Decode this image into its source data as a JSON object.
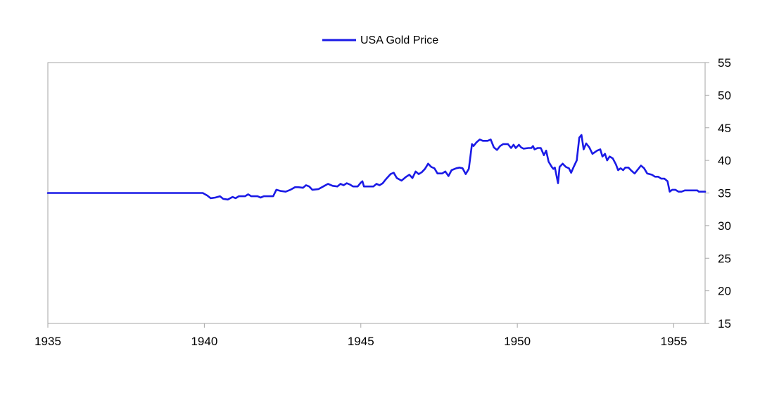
{
  "chart_data": {
    "type": "line",
    "title": "",
    "xlabel": "",
    "ylabel": "",
    "xlim": [
      1935,
      1956
    ],
    "ylim": [
      15,
      55
    ],
    "x_ticks": [
      "1935",
      "1940",
      "1945",
      "1950",
      "1955"
    ],
    "y_ticks": [
      "15",
      "20",
      "25",
      "30",
      "35",
      "40",
      "45",
      "50",
      "55"
    ],
    "y_axis_position": "right",
    "grid": false,
    "legend_position": "top-center",
    "series": [
      {
        "name": "USA Gold Price",
        "color": "#1a1ae6",
        "points": [
          [
            1935.0,
            35.0
          ],
          [
            1939.95,
            35.0
          ],
          [
            1940.1,
            34.6
          ],
          [
            1940.2,
            34.2
          ],
          [
            1940.35,
            34.3
          ],
          [
            1940.5,
            34.5
          ],
          [
            1940.6,
            34.1
          ],
          [
            1940.75,
            34.0
          ],
          [
            1940.9,
            34.4
          ],
          [
            1941.0,
            34.2
          ],
          [
            1941.1,
            34.5
          ],
          [
            1941.3,
            34.5
          ],
          [
            1941.4,
            34.8
          ],
          [
            1941.5,
            34.5
          ],
          [
            1941.7,
            34.5
          ],
          [
            1941.8,
            34.3
          ],
          [
            1941.9,
            34.5
          ],
          [
            1942.1,
            34.5
          ],
          [
            1942.2,
            34.5
          ],
          [
            1942.3,
            35.5
          ],
          [
            1942.45,
            35.3
          ],
          [
            1942.6,
            35.2
          ],
          [
            1942.75,
            35.5
          ],
          [
            1942.9,
            35.9
          ],
          [
            1943.0,
            35.9
          ],
          [
            1943.15,
            35.8
          ],
          [
            1943.25,
            36.2
          ],
          [
            1943.35,
            36.0
          ],
          [
            1943.45,
            35.5
          ],
          [
            1943.65,
            35.6
          ],
          [
            1943.8,
            36.0
          ],
          [
            1943.95,
            36.4
          ],
          [
            1944.1,
            36.1
          ],
          [
            1944.25,
            36.0
          ],
          [
            1944.35,
            36.4
          ],
          [
            1944.45,
            36.2
          ],
          [
            1944.55,
            36.5
          ],
          [
            1944.65,
            36.3
          ],
          [
            1944.75,
            36.0
          ],
          [
            1944.9,
            36.0
          ],
          [
            1945.0,
            36.6
          ],
          [
            1945.05,
            36.8
          ],
          [
            1945.1,
            36.0
          ],
          [
            1945.4,
            36.0
          ],
          [
            1945.5,
            36.4
          ],
          [
            1945.6,
            36.2
          ],
          [
            1945.7,
            36.5
          ],
          [
            1945.8,
            37.1
          ],
          [
            1945.95,
            37.9
          ],
          [
            1946.05,
            38.1
          ],
          [
            1946.15,
            37.3
          ],
          [
            1946.3,
            36.9
          ],
          [
            1946.45,
            37.5
          ],
          [
            1946.55,
            37.8
          ],
          [
            1946.65,
            37.3
          ],
          [
            1946.75,
            38.3
          ],
          [
            1946.85,
            37.9
          ],
          [
            1946.95,
            38.2
          ],
          [
            1947.05,
            38.7
          ],
          [
            1947.15,
            39.5
          ],
          [
            1947.25,
            39.0
          ],
          [
            1947.35,
            38.8
          ],
          [
            1947.45,
            38.0
          ],
          [
            1947.6,
            38.0
          ],
          [
            1947.7,
            38.3
          ],
          [
            1947.8,
            37.6
          ],
          [
            1947.9,
            38.5
          ],
          [
            1948.05,
            38.8
          ],
          [
            1948.15,
            38.9
          ],
          [
            1948.25,
            38.8
          ],
          [
            1948.35,
            37.9
          ],
          [
            1948.45,
            38.7
          ],
          [
            1948.55,
            42.5
          ],
          [
            1948.6,
            42.2
          ],
          [
            1948.7,
            42.8
          ],
          [
            1948.8,
            43.2
          ],
          [
            1948.9,
            43.0
          ],
          [
            1949.05,
            43.0
          ],
          [
            1949.15,
            43.2
          ],
          [
            1949.25,
            42.0
          ],
          [
            1949.35,
            41.6
          ],
          [
            1949.45,
            42.2
          ],
          [
            1949.55,
            42.5
          ],
          [
            1949.7,
            42.5
          ],
          [
            1949.8,
            41.9
          ],
          [
            1949.88,
            42.4
          ],
          [
            1949.95,
            41.9
          ],
          [
            1950.05,
            42.4
          ],
          [
            1950.12,
            42.0
          ],
          [
            1950.2,
            41.8
          ],
          [
            1950.35,
            41.9
          ],
          [
            1950.45,
            41.9
          ],
          [
            1950.5,
            42.2
          ],
          [
            1950.55,
            41.7
          ],
          [
            1950.65,
            41.9
          ],
          [
            1950.75,
            41.9
          ],
          [
            1950.85,
            40.8
          ],
          [
            1950.92,
            41.5
          ],
          [
            1951.0,
            39.8
          ],
          [
            1951.1,
            39.0
          ],
          [
            1951.15,
            38.7
          ],
          [
            1951.2,
            38.9
          ],
          [
            1951.3,
            36.5
          ],
          [
            1951.35,
            39.0
          ],
          [
            1951.45,
            39.5
          ],
          [
            1951.55,
            39.0
          ],
          [
            1951.65,
            38.8
          ],
          [
            1951.72,
            38.1
          ],
          [
            1951.8,
            39.0
          ],
          [
            1951.9,
            40.0
          ],
          [
            1951.98,
            43.5
          ],
          [
            1952.05,
            43.9
          ],
          [
            1952.12,
            41.7
          ],
          [
            1952.2,
            42.6
          ],
          [
            1952.3,
            42.0
          ],
          [
            1952.4,
            41.0
          ],
          [
            1952.55,
            41.5
          ],
          [
            1952.65,
            41.7
          ],
          [
            1952.72,
            40.6
          ],
          [
            1952.8,
            41.0
          ],
          [
            1952.87,
            40.0
          ],
          [
            1952.95,
            40.6
          ],
          [
            1953.05,
            40.3
          ],
          [
            1953.15,
            39.4
          ],
          [
            1953.22,
            38.5
          ],
          [
            1953.3,
            38.8
          ],
          [
            1953.38,
            38.5
          ],
          [
            1953.45,
            38.9
          ],
          [
            1953.55,
            38.9
          ],
          [
            1953.65,
            38.4
          ],
          [
            1953.75,
            38.0
          ],
          [
            1953.85,
            38.6
          ],
          [
            1953.95,
            39.2
          ],
          [
            1954.05,
            38.8
          ],
          [
            1954.15,
            38.0
          ],
          [
            1954.3,
            37.8
          ],
          [
            1954.4,
            37.5
          ],
          [
            1954.5,
            37.5
          ],
          [
            1954.6,
            37.2
          ],
          [
            1954.7,
            37.2
          ],
          [
            1954.8,
            36.8
          ],
          [
            1954.87,
            35.2
          ],
          [
            1954.95,
            35.5
          ],
          [
            1955.05,
            35.5
          ],
          [
            1955.15,
            35.2
          ],
          [
            1955.25,
            35.2
          ],
          [
            1955.35,
            35.4
          ],
          [
            1955.6,
            35.4
          ],
          [
            1955.75,
            35.4
          ],
          [
            1955.8,
            35.2
          ],
          [
            1956.0,
            35.2
          ]
        ]
      }
    ]
  }
}
